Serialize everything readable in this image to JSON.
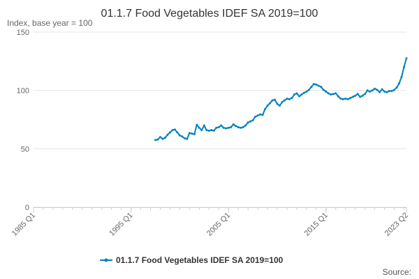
{
  "chart_data": {
    "type": "line",
    "title": "01.1.7 Food Vegetables IDEF SA 2019=100",
    "subtitle": "Index, base year = 100",
    "xlabel": "",
    "ylabel": "",
    "x_categories_start": "1985 Q1",
    "x_categories_end": "2023 Q2",
    "x_tick_labels": [
      "1985 Q1",
      "1995 Q1",
      "2005 Q1",
      "2015 Q1",
      "2023 Q2"
    ],
    "y_ticks": [
      0,
      50,
      100,
      150
    ],
    "ylim": [
      0,
      150
    ],
    "grid": true,
    "legend": "bottom-center",
    "credit": "Source:",
    "series": [
      {
        "name": "01.1.7 Food Vegetables IDEF SA 2019=100",
        "color": "#0080c0",
        "points": [
          [
            "1997 Q3",
            57.5
          ],
          [
            "1997 Q4",
            58.0
          ],
          [
            "1998 Q1",
            60.0
          ],
          [
            "1998 Q2",
            58.5
          ],
          [
            "1998 Q3",
            59.5
          ],
          [
            "1998 Q4",
            62.0
          ],
          [
            "1999 Q1",
            64.0
          ],
          [
            "1999 Q2",
            66.0
          ],
          [
            "1999 Q3",
            66.5
          ],
          [
            "1999 Q4",
            64.0
          ],
          [
            "2000 Q1",
            61.5
          ],
          [
            "2000 Q2",
            60.5
          ],
          [
            "2000 Q3",
            59.0
          ],
          [
            "2000 Q4",
            58.5
          ],
          [
            "2001 Q1",
            63.5
          ],
          [
            "2001 Q2",
            63.0
          ],
          [
            "2001 Q3",
            62.5
          ],
          [
            "2001 Q4",
            70.5
          ],
          [
            "2002 Q1",
            68.0
          ],
          [
            "2002 Q2",
            66.0
          ],
          [
            "2002 Q3",
            70.0
          ],
          [
            "2002 Q4",
            66.0
          ],
          [
            "2003 Q1",
            65.5
          ],
          [
            "2003 Q2",
            66.0
          ],
          [
            "2003 Q3",
            65.5
          ],
          [
            "2003 Q4",
            68.0
          ],
          [
            "2004 Q1",
            68.5
          ],
          [
            "2004 Q2",
            70.0
          ],
          [
            "2004 Q3",
            68.0
          ],
          [
            "2004 Q4",
            67.5
          ],
          [
            "2005 Q1",
            68.0
          ],
          [
            "2005 Q2",
            68.5
          ],
          [
            "2005 Q3",
            71.0
          ],
          [
            "2005 Q4",
            69.5
          ],
          [
            "2006 Q1",
            68.5
          ],
          [
            "2006 Q2",
            68.0
          ],
          [
            "2006 Q3",
            68.5
          ],
          [
            "2006 Q4",
            70.0
          ],
          [
            "2007 Q1",
            72.5
          ],
          [
            "2007 Q2",
            73.5
          ],
          [
            "2007 Q3",
            74.5
          ],
          [
            "2007 Q4",
            77.5
          ],
          [
            "2008 Q1",
            78.5
          ],
          [
            "2008 Q2",
            79.5
          ],
          [
            "2008 Q3",
            79.0
          ],
          [
            "2008 Q4",
            84.0
          ],
          [
            "2009 Q1",
            87.0
          ],
          [
            "2009 Q2",
            89.0
          ],
          [
            "2009 Q3",
            91.5
          ],
          [
            "2009 Q4",
            92.0
          ],
          [
            "2010 Q1",
            88.5
          ],
          [
            "2010 Q2",
            87.0
          ],
          [
            "2010 Q3",
            90.0
          ],
          [
            "2010 Q4",
            91.5
          ],
          [
            "2011 Q1",
            93.0
          ],
          [
            "2011 Q2",
            92.5
          ],
          [
            "2011 Q3",
            93.5
          ],
          [
            "2011 Q4",
            96.5
          ],
          [
            "2012 Q1",
            97.5
          ],
          [
            "2012 Q2",
            95.0
          ],
          [
            "2012 Q3",
            96.5
          ],
          [
            "2012 Q4",
            98.0
          ],
          [
            "2013 Q1",
            99.0
          ],
          [
            "2013 Q2",
            100.5
          ],
          [
            "2013 Q3",
            103.0
          ],
          [
            "2013 Q4",
            105.5
          ],
          [
            "2014 Q1",
            105.0
          ],
          [
            "2014 Q2",
            104.0
          ],
          [
            "2014 Q3",
            103.0
          ],
          [
            "2014 Q4",
            100.5
          ],
          [
            "2015 Q1",
            99.0
          ],
          [
            "2015 Q2",
            97.5
          ],
          [
            "2015 Q3",
            96.5
          ],
          [
            "2015 Q4",
            97.0
          ],
          [
            "2016 Q1",
            97.5
          ],
          [
            "2016 Q2",
            95.0
          ],
          [
            "2016 Q3",
            93.0
          ],
          [
            "2016 Q4",
            92.5
          ],
          [
            "2017 Q1",
            93.0
          ],
          [
            "2017 Q2",
            92.5
          ],
          [
            "2017 Q3",
            93.5
          ],
          [
            "2017 Q4",
            94.5
          ],
          [
            "2018 Q1",
            95.5
          ],
          [
            "2018 Q2",
            97.0
          ],
          [
            "2018 Q3",
            94.5
          ],
          [
            "2018 Q4",
            95.5
          ],
          [
            "2019 Q1",
            97.0
          ],
          [
            "2019 Q2",
            100.0
          ],
          [
            "2019 Q3",
            99.0
          ],
          [
            "2019 Q4",
            100.0
          ],
          [
            "2020 Q1",
            101.5
          ],
          [
            "2020 Q2",
            100.5
          ],
          [
            "2020 Q3",
            98.5
          ],
          [
            "2020 Q4",
            101.0
          ],
          [
            "2021 Q1",
            99.0
          ],
          [
            "2021 Q2",
            98.5
          ],
          [
            "2021 Q3",
            99.5
          ],
          [
            "2021 Q4",
            99.5
          ],
          [
            "2022 Q1",
            100.5
          ],
          [
            "2022 Q2",
            102.5
          ],
          [
            "2022 Q3",
            106.0
          ],
          [
            "2022 Q4",
            111.5
          ],
          [
            "2023 Q1",
            120.0
          ],
          [
            "2023 Q2",
            127.5
          ]
        ]
      }
    ]
  }
}
